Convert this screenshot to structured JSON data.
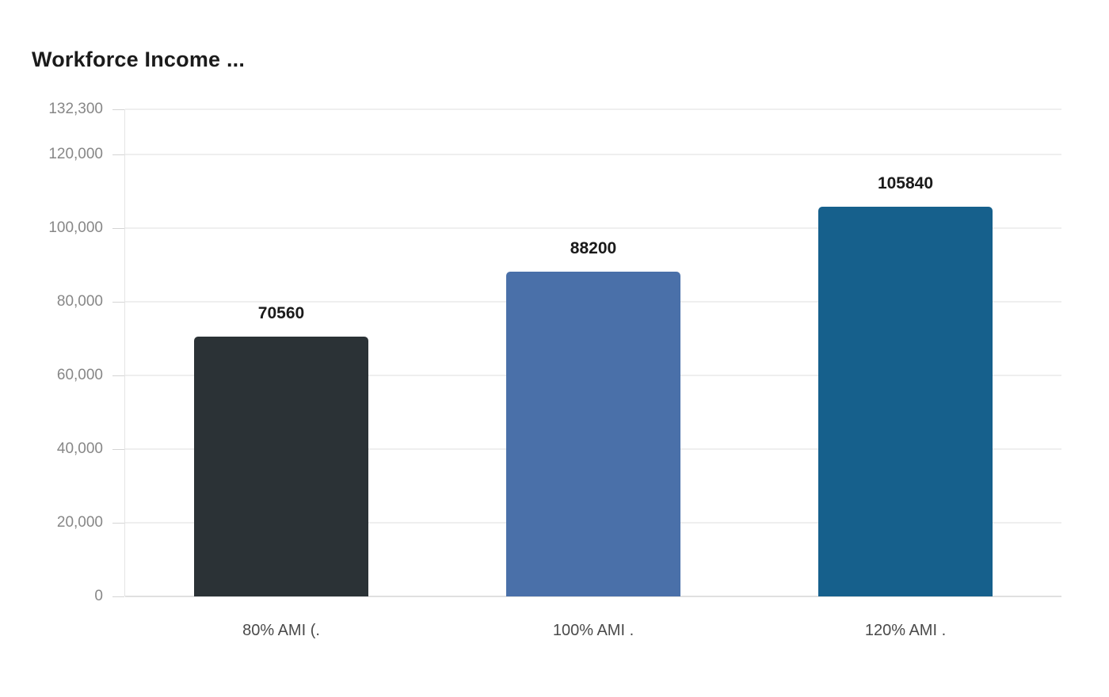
{
  "page": {
    "background": "#ffffff"
  },
  "header": {
    "title": "Workforce Income ..."
  },
  "colors": {
    "title_text": "#1b1b1b",
    "axis_tick_text": "#878787",
    "category_text": "#4a4a4a",
    "value_label_text": "#1a1a1a",
    "gridline": "#efefef",
    "baseline": "#e0e0e0",
    "axis_line": "#e4e4e4",
    "tick_mark": "#d4d4d4"
  },
  "chart_data": {
    "type": "bar",
    "title": "Workforce Income ...",
    "categories": [
      "80% AMI (.",
      "100% AMI .",
      "120% AMI ."
    ],
    "values": [
      70560,
      88200,
      105840
    ],
    "value_labels": [
      "70560",
      "88200",
      "105840"
    ],
    "bar_colors": [
      "#2b3236",
      "#4a70a9",
      "#16608c"
    ],
    "xlabel": "",
    "ylabel": "",
    "ylim": [
      0,
      132300
    ],
    "yticks": [
      0,
      20000,
      40000,
      60000,
      80000,
      100000,
      120000,
      132300
    ],
    "ytick_labels": [
      "0",
      "20,000",
      "40,000",
      "60,000",
      "80,000",
      "100,000",
      "120,000",
      "132,300"
    ],
    "grid": true,
    "legend": false
  }
}
